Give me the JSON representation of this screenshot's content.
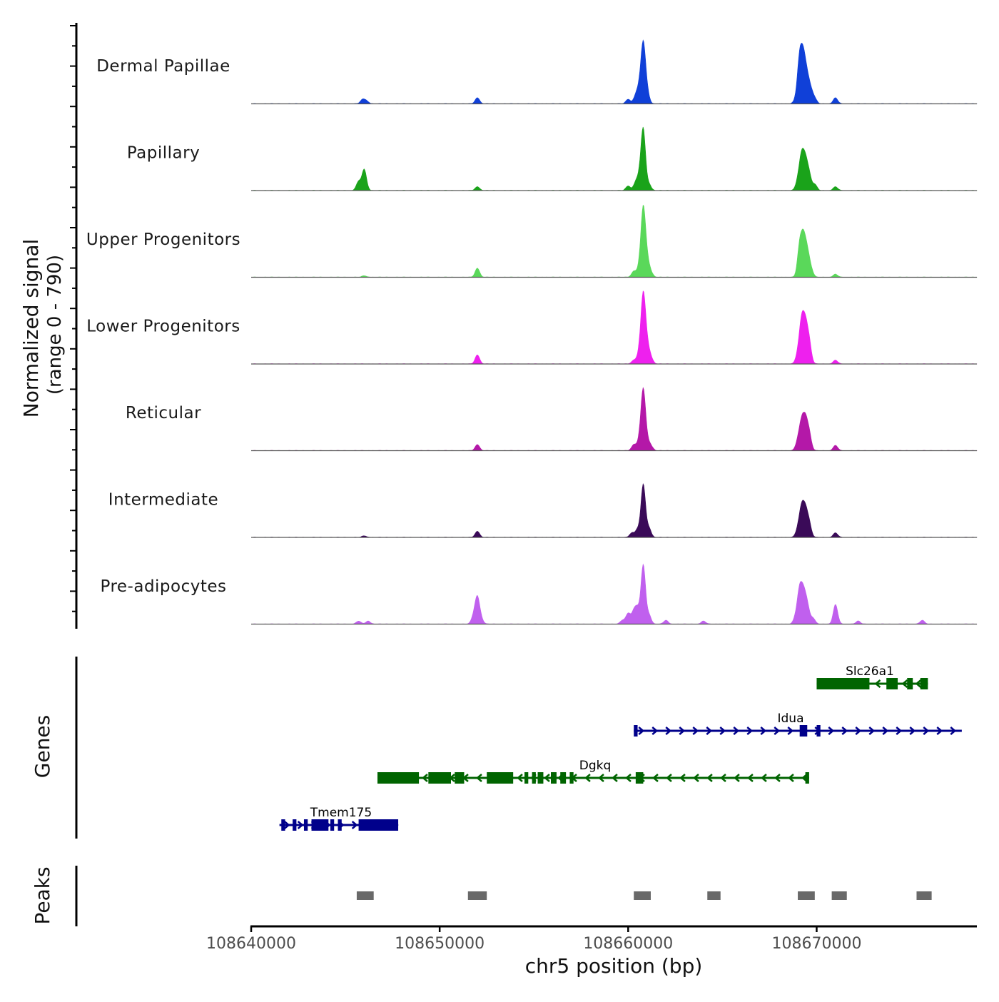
{
  "chart_data": [
    {
      "type": "area",
      "title": "",
      "ylabel_line1": "Normalized signal",
      "ylabel_line2": "(range 0 - 790)",
      "ylim": [
        0,
        790
      ],
      "xlim": [
        108640000,
        108678500
      ],
      "peak_shape_width_bp": 120,
      "tracks": [
        {
          "name": "Dermal Papillae",
          "color": "#1040d8",
          "peaks": [
            [
              108645900,
              0.05
            ],
            [
              108646100,
              0.04
            ],
            [
              108652000,
              0.08
            ],
            [
              108660000,
              0.06
            ],
            [
              108660400,
              0.1
            ],
            [
              108660800,
              0.76
            ],
            [
              108660600,
              0.18
            ],
            [
              108661000,
              0.15
            ],
            [
              108668900,
              0.05
            ],
            [
              108669100,
              0.58
            ],
            [
              108669300,
              0.54
            ],
            [
              108669500,
              0.3
            ],
            [
              108669700,
              0.15
            ],
            [
              108669900,
              0.06
            ],
            [
              108671000,
              0.08
            ]
          ]
        },
        {
          "name": "Papillary",
          "color": "#1aa31a",
          "peaks": [
            [
              108645700,
              0.12
            ],
            [
              108646000,
              0.28
            ],
            [
              108652000,
              0.05
            ],
            [
              108660000,
              0.06
            ],
            [
              108660400,
              0.1
            ],
            [
              108660800,
              0.8
            ],
            [
              108660600,
              0.14
            ],
            [
              108661100,
              0.08
            ],
            [
              108669000,
              0.12
            ],
            [
              108669200,
              0.42
            ],
            [
              108669400,
              0.35
            ],
            [
              108669600,
              0.2
            ],
            [
              108669900,
              0.08
            ],
            [
              108671000,
              0.05
            ]
          ]
        },
        {
          "name": "Upper Progenitors",
          "color": "#5ad85a",
          "peaks": [
            [
              108646000,
              0.02
            ],
            [
              108652000,
              0.12
            ],
            [
              108660300,
              0.08
            ],
            [
              108660600,
              0.12
            ],
            [
              108660800,
              0.88
            ],
            [
              108661000,
              0.2
            ],
            [
              108661200,
              0.06
            ],
            [
              108669100,
              0.4
            ],
            [
              108669300,
              0.46
            ],
            [
              108669500,
              0.3
            ],
            [
              108669700,
              0.1
            ],
            [
              108671000,
              0.04
            ]
          ]
        },
        {
          "name": "Lower Progenitors",
          "color": "#ee20ee",
          "peaks": [
            [
              108652000,
              0.12
            ],
            [
              108660300,
              0.05
            ],
            [
              108660600,
              0.14
            ],
            [
              108660800,
              0.88
            ],
            [
              108661000,
              0.22
            ],
            [
              108661200,
              0.08
            ],
            [
              108669000,
              0.12
            ],
            [
              108669200,
              0.52
            ],
            [
              108669400,
              0.46
            ],
            [
              108669600,
              0.28
            ],
            [
              108671000,
              0.05
            ]
          ]
        },
        {
          "name": "Reticular",
          "color": "#b418a8",
          "peaks": [
            [
              108652000,
              0.08
            ],
            [
              108660300,
              0.08
            ],
            [
              108660600,
              0.12
            ],
            [
              108660800,
              0.78
            ],
            [
              108661000,
              0.1
            ],
            [
              108661200,
              0.06
            ],
            [
              108669000,
              0.12
            ],
            [
              108669200,
              0.34
            ],
            [
              108669400,
              0.36
            ],
            [
              108669600,
              0.22
            ],
            [
              108671000,
              0.07
            ]
          ]
        },
        {
          "name": "Intermediate",
          "color": "#3a0a58",
          "peaks": [
            [
              108646000,
              0.02
            ],
            [
              108652000,
              0.08
            ],
            [
              108660200,
              0.06
            ],
            [
              108660500,
              0.1
            ],
            [
              108660800,
              0.7
            ],
            [
              108661100,
              0.12
            ],
            [
              108669000,
              0.1
            ],
            [
              108669200,
              0.36
            ],
            [
              108669400,
              0.32
            ],
            [
              108669600,
              0.18
            ],
            [
              108671000,
              0.06
            ]
          ]
        },
        {
          "name": "Pre-adipocytes",
          "color": "#c060ee",
          "peaks": [
            [
              108645700,
              0.04
            ],
            [
              108646200,
              0.04
            ],
            [
              108651800,
              0.1
            ],
            [
              108652000,
              0.34
            ],
            [
              108652200,
              0.06
            ],
            [
              108659700,
              0.05
            ],
            [
              108660000,
              0.14
            ],
            [
              108660300,
              0.16
            ],
            [
              108660500,
              0.18
            ],
            [
              108660800,
              0.78
            ],
            [
              108661100,
              0.12
            ],
            [
              108662000,
              0.05
            ],
            [
              108664000,
              0.04
            ],
            [
              108668900,
              0.1
            ],
            [
              108669100,
              0.42
            ],
            [
              108669300,
              0.36
            ],
            [
              108669500,
              0.24
            ],
            [
              108669800,
              0.08
            ],
            [
              108671000,
              0.26
            ],
            [
              108672200,
              0.04
            ],
            [
              108675600,
              0.05
            ]
          ]
        }
      ]
    },
    {
      "type": "gene_track",
      "ylabel": "Genes",
      "genes": [
        {
          "name": "Slc26a1",
          "row": 0,
          "strand": "-",
          "color": "#006400",
          "start": 108670000,
          "end": 108675900,
          "exons": [
            [
              108670000,
              108672800
            ],
            [
              108673700,
              108674300
            ],
            [
              108674800,
              108675100
            ],
            [
              108675500,
              108675900
            ]
          ]
        },
        {
          "name": "Idua",
          "row": 1,
          "strand": "+",
          "color": "#00008b",
          "start": 108660300,
          "end": 108677700,
          "exons": [
            [
              108660300,
              108660500
            ],
            [
              108669100,
              108669500
            ],
            [
              108670000,
              108670200
            ]
          ]
        },
        {
          "name": "Dgkq",
          "row": 2,
          "strand": "-",
          "color": "#006400",
          "start": 108646700,
          "end": 108669600,
          "exons": [
            [
              108646700,
              108648900
            ],
            [
              108649400,
              108650600
            ],
            [
              108650800,
              108651300
            ],
            [
              108652500,
              108653900
            ],
            [
              108654500,
              108654700
            ],
            [
              108654900,
              108655100
            ],
            [
              108655200,
              108655500
            ],
            [
              108655900,
              108656200
            ],
            [
              108656400,
              108656700
            ],
            [
              108656900,
              108657100
            ],
            [
              108660400,
              108660800
            ],
            [
              108669400,
              108669600
            ]
          ]
        },
        {
          "name": "Tmem175",
          "row": 3,
          "strand": "+",
          "color": "#00008b",
          "start": 108641500,
          "end": 108647800,
          "exons": [
            [
              108641600,
              108641800
            ],
            [
              108642200,
              108642400
            ],
            [
              108642800,
              108643000
            ],
            [
              108643200,
              108644100
            ],
            [
              108644200,
              108644400
            ],
            [
              108644600,
              108644800
            ],
            [
              108645700,
              108647800
            ]
          ]
        }
      ]
    },
    {
      "type": "interval_track",
      "ylabel": "Peaks",
      "color": "#696969",
      "peaks": [
        [
          108645600,
          108646500
        ],
        [
          108651500,
          108652500
        ],
        [
          108660300,
          108661200
        ],
        [
          108664200,
          108664900
        ],
        [
          108669000,
          108669900
        ],
        [
          108670800,
          108671600
        ],
        [
          108675300,
          108676100
        ]
      ]
    }
  ],
  "x_axis": {
    "label": "chr5 position (bp)",
    "ticks": [
      "108640000",
      "108650000",
      "108660000",
      "108670000"
    ]
  }
}
